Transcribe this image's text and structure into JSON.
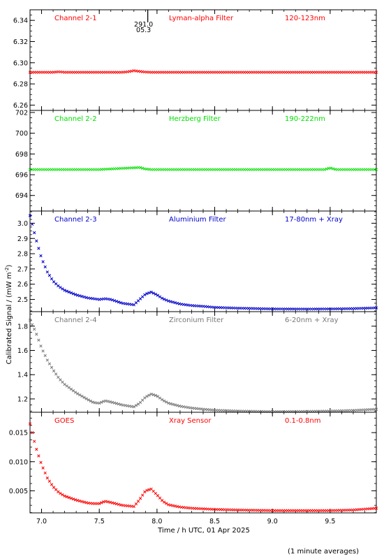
{
  "x_axis": {
    "label": "Time / h UTC, 01 Apr 2025",
    "range": [
      6.9,
      9.9
    ],
    "ticks": [
      7.0,
      7.5,
      8.0,
      8.5,
      9.0,
      9.5
    ],
    "tick_labels": [
      "7.0",
      "7.5",
      "8.0",
      "8.5",
      "9.0",
      "9.5"
    ]
  },
  "y_axis_label": "Calibrated Signal / (mW m",
  "y_axis_label_exp": "-2",
  "y_axis_label_close": ")",
  "footnote": "(1 minute averages)",
  "marker": {
    "x": 7.92,
    "text_top": "291.0",
    "text_bottom": "05.3"
  },
  "chart_data": [
    {
      "type": "scatter",
      "panel": "Channel 2-1",
      "channel": "Channel 2-1",
      "filter": "Lyman-alpha Filter",
      "band": "120-123nm",
      "color": "#ff0000",
      "ylim": [
        6.255,
        6.35
      ],
      "yticks": [
        6.26,
        6.28,
        6.3,
        6.32,
        6.34
      ],
      "ytick_labels": [
        "6.26",
        "6.28",
        "6.30",
        "6.32",
        "6.34"
      ],
      "x": [
        6.9,
        7.1,
        7.15,
        7.2,
        7.5,
        7.7,
        7.75,
        7.8,
        7.85,
        7.9,
        7.95,
        8.0,
        8.5,
        9.0,
        9.5,
        9.9
      ],
      "y": [
        6.291,
        6.291,
        6.2915,
        6.291,
        6.291,
        6.291,
        6.2915,
        6.2925,
        6.2918,
        6.2912,
        6.291,
        6.291,
        6.291,
        6.291,
        6.291,
        6.291
      ]
    },
    {
      "type": "scatter",
      "panel": "Channel 2-2",
      "channel": "Channel 2-2",
      "filter": "Herzberg Filter",
      "band": "190-222nm",
      "color": "#00e000",
      "ylim": [
        692.5,
        702.2
      ],
      "yticks": [
        694,
        696,
        698,
        700,
        702
      ],
      "ytick_labels": [
        "694",
        "696",
        "698",
        "700",
        "702"
      ],
      "x": [
        6.9,
        7.5,
        7.85,
        7.9,
        7.95,
        8.5,
        9.0,
        9.45,
        9.5,
        9.55,
        9.9
      ],
      "y": [
        696.5,
        696.5,
        696.7,
        696.55,
        696.5,
        696.5,
        696.5,
        696.5,
        696.65,
        696.5,
        696.5
      ]
    },
    {
      "type": "scatter",
      "panel": "Channel 2-3",
      "channel": "Channel 2-3",
      "filter": "Aluminium Filter",
      "band": "17-80nm + Xray",
      "color": "#0000cc",
      "ylim": [
        2.42,
        3.08
      ],
      "yticks": [
        2.5,
        2.6,
        2.7,
        2.8,
        2.9,
        3.0
      ],
      "ytick_labels": [
        "2.5",
        "2.6",
        "2.7",
        "2.8",
        "2.9",
        "3.0"
      ],
      "x": [
        6.9,
        6.95,
        7.0,
        7.05,
        7.1,
        7.15,
        7.2,
        7.3,
        7.4,
        7.5,
        7.55,
        7.6,
        7.7,
        7.8,
        7.85,
        7.9,
        7.95,
        8.0,
        8.05,
        8.1,
        8.2,
        8.3,
        8.4,
        8.5,
        8.7,
        9.0,
        9.3,
        9.5,
        9.7,
        9.9
      ],
      "y": [
        3.05,
        2.9,
        2.77,
        2.68,
        2.62,
        2.585,
        2.56,
        2.53,
        2.51,
        2.5,
        2.505,
        2.5,
        2.475,
        2.465,
        2.5,
        2.535,
        2.548,
        2.53,
        2.505,
        2.49,
        2.47,
        2.46,
        2.455,
        2.448,
        2.443,
        2.438,
        2.437,
        2.438,
        2.44,
        2.445
      ]
    },
    {
      "type": "scatter",
      "panel": "Channel 2-4",
      "channel": "Channel 2-4",
      "filter": "Zirconium Filter",
      "band": "6-20nm + Xray",
      "color": "#777777",
      "ylim": [
        1.09,
        1.92
      ],
      "yticks": [
        1.2,
        1.4,
        1.6,
        1.8
      ],
      "ytick_labels": [
        "1.2",
        "1.4",
        "1.6",
        "1.8"
      ],
      "x": [
        6.9,
        6.95,
        7.0,
        7.05,
        7.1,
        7.15,
        7.2,
        7.3,
        7.4,
        7.45,
        7.5,
        7.55,
        7.6,
        7.7,
        7.8,
        7.85,
        7.9,
        7.95,
        8.0,
        8.05,
        8.1,
        8.2,
        8.3,
        8.4,
        8.5,
        8.7,
        9.0,
        9.3,
        9.5,
        9.7,
        9.9
      ],
      "y": [
        1.85,
        1.75,
        1.62,
        1.52,
        1.44,
        1.37,
        1.32,
        1.25,
        1.195,
        1.17,
        1.165,
        1.185,
        1.175,
        1.15,
        1.135,
        1.165,
        1.215,
        1.24,
        1.225,
        1.19,
        1.165,
        1.14,
        1.125,
        1.115,
        1.107,
        1.1,
        1.095,
        1.097,
        1.1,
        1.105,
        1.115
      ]
    },
    {
      "type": "scatter",
      "panel": "GOES",
      "channel": "GOES",
      "filter": "Xray Sensor",
      "band": "0.1-0.8nm",
      "color": "#ff0000",
      "ylim": [
        0.0012,
        0.0185
      ],
      "yticks": [
        0.005,
        0.01,
        0.015
      ],
      "ytick_labels": [
        "0.005",
        "0.010",
        "0.015"
      ],
      "x": [
        6.9,
        6.95,
        7.0,
        7.05,
        7.1,
        7.15,
        7.2,
        7.3,
        7.4,
        7.45,
        7.5,
        7.55,
        7.6,
        7.7,
        7.8,
        7.85,
        7.9,
        7.95,
        8.0,
        8.05,
        8.1,
        8.2,
        8.3,
        8.4,
        8.5,
        8.7,
        9.0,
        9.3,
        9.5,
        9.7,
        9.9
      ],
      "y": [
        0.0165,
        0.0125,
        0.0095,
        0.0072,
        0.0057,
        0.0047,
        0.0041,
        0.0034,
        0.0029,
        0.0028,
        0.0028,
        0.0032,
        0.003,
        0.0025,
        0.0023,
        0.0035,
        0.005,
        0.0053,
        0.0043,
        0.0032,
        0.0026,
        0.0022,
        0.002,
        0.0019,
        0.0018,
        0.0017,
        0.0016,
        0.0016,
        0.0016,
        0.0017,
        0.002
      ]
    }
  ]
}
